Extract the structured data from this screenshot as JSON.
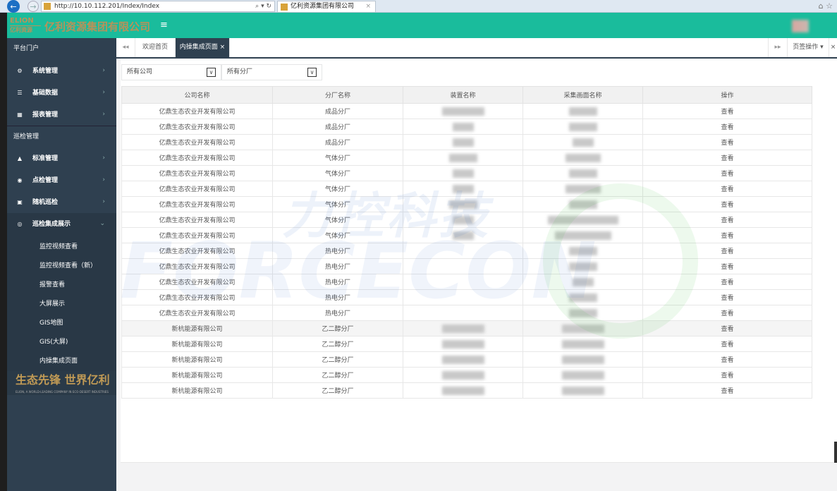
{
  "browser": {
    "url": "http://10.10.112.201/Index/Index",
    "tab_title": "亿利资源集团有限公司",
    "tab_close": "×",
    "search_tools": "⌕ ▾ ↻"
  },
  "header": {
    "logo_text": "ELION 亿利资源",
    "brand": "亿利资源集团有限公司",
    "menu_icon": "≡"
  },
  "sidebar": {
    "section1": "平台门户",
    "items1": [
      {
        "label": "系统管理",
        "icon": "gear-icon"
      },
      {
        "label": "基础数据",
        "icon": "database-icon"
      },
      {
        "label": "报表管理",
        "icon": "table-icon"
      }
    ],
    "section2": "巡检管理",
    "items2": [
      {
        "label": "标准管理",
        "icon": "flask-icon"
      },
      {
        "label": "点检管理",
        "icon": "dot-circle-icon"
      },
      {
        "label": "随机巡检",
        "icon": "camera-icon"
      },
      {
        "label": "巡检集成展示",
        "icon": "eye-icon"
      }
    ],
    "subitems": [
      "监控视频查看",
      "监控视频查看（新）",
      "报警查看",
      "大屏展示",
      "GIS地图",
      "GIS(大屏)",
      "内操集成页面"
    ],
    "slogan": "生态先锋 世界亿利",
    "slogan_sub": "ELION, A WORLD-LEADING COMPANY IN ECO-DESERT INDUSTRIES"
  },
  "tabs": {
    "back": "◂◂",
    "items": [
      "欢迎首页",
      "内操集成页面"
    ],
    "close": "×",
    "forward": "▸▸",
    "tab_ops": "页签操作 ▾",
    "close_ops": "⨯"
  },
  "filters": {
    "company": "所有公司",
    "branch": "所有分厂"
  },
  "table": {
    "headers": [
      "公司名称",
      "分厂名称",
      "装置名称",
      "采集画面名称",
      "操作"
    ],
    "rows": [
      [
        "亿鼎生态农业开发有限公司",
        "成品分厂"
      ],
      [
        "亿鼎生态农业开发有限公司",
        "成品分厂"
      ],
      [
        "亿鼎生态农业开发有限公司",
        "成品分厂"
      ],
      [
        "亿鼎生态农业开发有限公司",
        "气体分厂"
      ],
      [
        "亿鼎生态农业开发有限公司",
        "气体分厂"
      ],
      [
        "亿鼎生态农业开发有限公司",
        "气体分厂"
      ],
      [
        "亿鼎生态农业开发有限公司",
        "气体分厂"
      ],
      [
        "亿鼎生态农业开发有限公司",
        "气体分厂"
      ],
      [
        "亿鼎生态农业开发有限公司",
        "气体分厂"
      ],
      [
        "亿鼎生态农业开发有限公司",
        "热电分厂"
      ],
      [
        "亿鼎生态农业开发有限公司",
        "热电分厂"
      ],
      [
        "亿鼎生态农业开发有限公司",
        "热电分厂"
      ],
      [
        "亿鼎生态农业开发有限公司",
        "热电分厂"
      ],
      [
        "亿鼎生态农业开发有限公司",
        "热电分厂"
      ],
      [
        "新杭能源有限公司",
        "乙二醇分厂"
      ],
      [
        "新杭能源有限公司",
        "乙二醇分厂"
      ],
      [
        "新杭能源有限公司",
        "乙二醇分厂"
      ],
      [
        "新杭能源有限公司",
        "乙二醇分厂"
      ],
      [
        "新杭能源有限公司",
        "乙二醇分厂"
      ]
    ],
    "action": "查看",
    "highlighted_row": 15
  },
  "watermark": {
    "cn": "力控科技",
    "en": "FORCECON"
  },
  "colors": {
    "header": "#1abc9c",
    "sidebar": "#2f4050",
    "brand": "#b8925a"
  }
}
